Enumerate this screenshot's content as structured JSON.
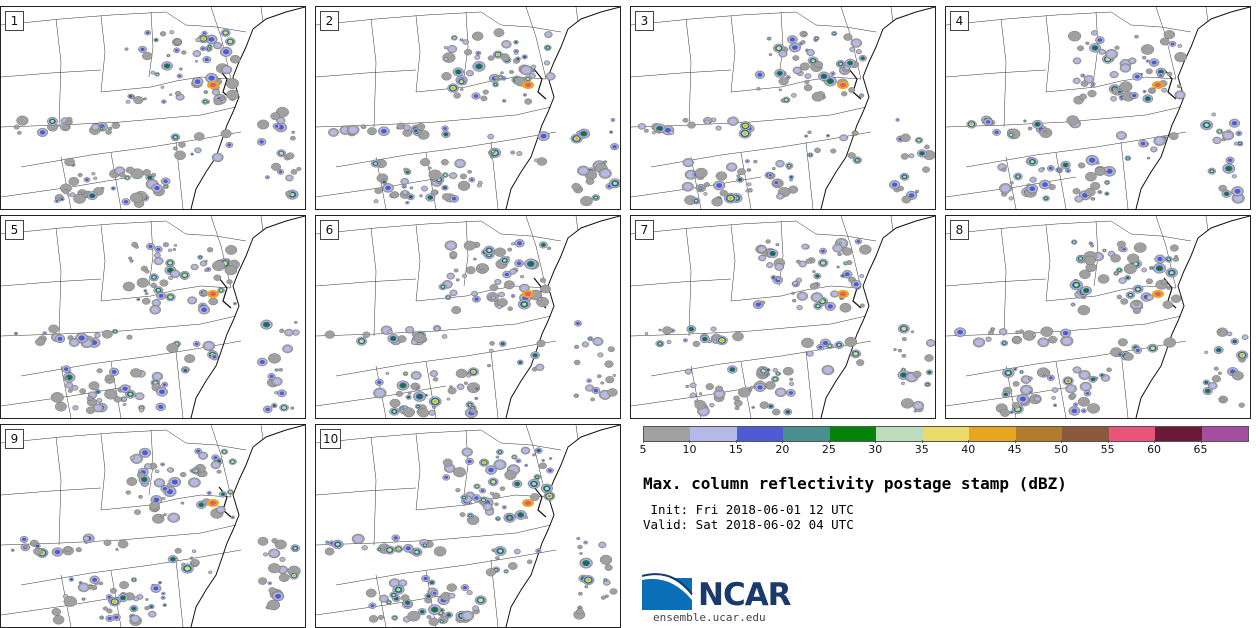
{
  "panels": [
    {
      "label": "1"
    },
    {
      "label": "2"
    },
    {
      "label": "3"
    },
    {
      "label": "4"
    },
    {
      "label": "5"
    },
    {
      "label": "6"
    },
    {
      "label": "7"
    },
    {
      "label": "8"
    },
    {
      "label": "9"
    },
    {
      "label": "10"
    }
  ],
  "colorbar": {
    "ticks": [
      "5",
      "10",
      "15",
      "20",
      "25",
      "30",
      "35",
      "40",
      "45",
      "50",
      "55",
      "60",
      "65"
    ],
    "colors": [
      "#a0a0a0",
      "#b4b9e8",
      "#4f5bd5",
      "#4a8f8f",
      "#05840c",
      "#bcdcbb",
      "#eadb6b",
      "#e6a61f",
      "#b17c2c",
      "#8b5a3c",
      "#ea5478",
      "#6b1a3a",
      "#a44ea0"
    ]
  },
  "title": "Max. column reflectivity postage stamp (dBZ)",
  "init": " Init: Fri 2018-06-01 12 UTC",
  "valid": "Valid: Sat 2018-06-02 04 UTC",
  "logo": {
    "text": "NCAR"
  },
  "url": "ensemble.ucar.edu"
}
